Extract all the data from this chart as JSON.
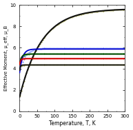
{
  "xlabel": "Temperature, T, K",
  "ylabel": "Effective Moment, μ_eff, μ_B",
  "xlim": [
    0,
    300
  ],
  "ylim": [
    0,
    10
  ],
  "xticks": [
    0,
    50,
    100,
    150,
    200,
    250,
    300
  ],
  "yticks": [
    0,
    2,
    4,
    6,
    8,
    10
  ],
  "background_color": "#ffffff",
  "series": [
    {
      "plateau": 9.65,
      "start": 1.3,
      "rate": 0.016,
      "color": "#111111",
      "style": "solid",
      "lw": 1.5,
      "marker": null,
      "ms": 0
    },
    {
      "plateau": 9.65,
      "start": 1.3,
      "rate": 0.016,
      "color": "#808000",
      "style": "none",
      "lw": 0.0,
      "marker": ".",
      "ms": 0.8
    },
    {
      "plateau": 5.85,
      "start": 3.55,
      "rate": 0.12,
      "color": "#0000cc",
      "style": "solid",
      "lw": 1.3,
      "marker": null,
      "ms": 0
    },
    {
      "plateau": 5.95,
      "start": 3.8,
      "rate": 0.06,
      "color": "#4466ff",
      "style": "none",
      "lw": 0.0,
      "marker": ".",
      "ms": 0.8
    },
    {
      "plateau": 5.38,
      "start": 4.35,
      "rate": 0.2,
      "color": "#004400",
      "style": "solid",
      "lw": 1.3,
      "marker": null,
      "ms": 0
    },
    {
      "plateau": 5.4,
      "start": 4.45,
      "rate": 0.15,
      "color": "#009900",
      "style": "none",
      "lw": 0.0,
      "marker": ".",
      "ms": 0.8
    },
    {
      "plateau": 4.95,
      "start": 4.35,
      "rate": 0.35,
      "color": "#cc0000",
      "style": "solid",
      "lw": 1.3,
      "marker": null,
      "ms": 0
    },
    {
      "plateau": 4.95,
      "start": 4.45,
      "rate": 0.25,
      "color": "#ff3333",
      "style": "none",
      "lw": 0.0,
      "marker": ".",
      "ms": 0.8
    },
    {
      "plateau": 4.35,
      "start": 3.75,
      "rate": 0.5,
      "color": "#111111",
      "style": "solid",
      "lw": 1.3,
      "marker": null,
      "ms": 0
    },
    {
      "plateau": 4.35,
      "start": 3.85,
      "rate": 0.4,
      "color": "#808000",
      "style": "none",
      "lw": 0.0,
      "marker": ".",
      "ms": 0.8
    }
  ]
}
